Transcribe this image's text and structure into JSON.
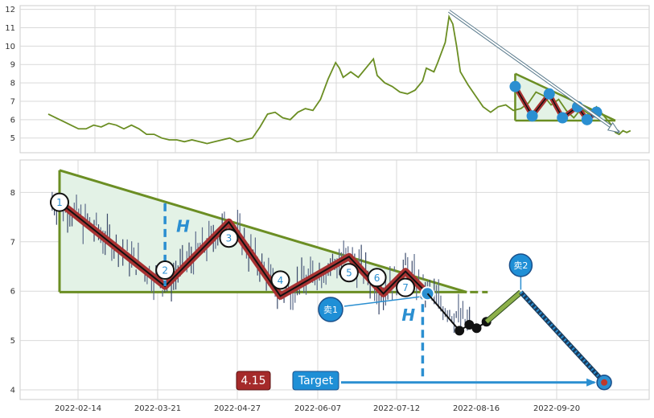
{
  "chart_data": [
    {
      "type": "line",
      "name_role": "overview-price",
      "ylim": [
        4.2,
        12.2
      ],
      "yticks": [
        5,
        6,
        7,
        8,
        9,
        10,
        11,
        12
      ],
      "grid": true,
      "series": [
        {
          "values": [
            [
              0.0,
              6.3
            ],
            [
              4,
              6.1
            ],
            [
              8,
              5.9
            ],
            [
              12,
              5.7
            ],
            [
              16,
              5.5
            ],
            [
              20,
              5.5
            ],
            [
              24,
              5.7
            ],
            [
              28,
              5.6
            ],
            [
              32,
              5.8
            ],
            [
              36,
              5.7
            ],
            [
              40,
              5.5
            ],
            [
              44,
              5.7
            ],
            [
              48,
              5.5
            ],
            [
              52,
              5.2
            ],
            [
              56,
              5.2
            ],
            [
              60,
              5.0
            ],
            [
              64,
              4.9
            ],
            [
              68,
              4.9
            ],
            [
              72,
              4.8
            ],
            [
              76,
              4.9
            ],
            [
              80,
              4.8
            ],
            [
              84,
              4.7
            ],
            [
              88,
              4.8
            ],
            [
              92,
              4.9
            ],
            [
              96,
              5.0
            ],
            [
              100,
              4.8
            ],
            [
              104,
              4.9
            ],
            [
              108,
              5.0
            ],
            [
              112,
              5.6
            ],
            [
              116,
              6.3
            ],
            [
              120,
              6.4
            ],
            [
              124,
              6.1
            ],
            [
              128,
              6.0
            ],
            [
              132,
              6.4
            ],
            [
              136,
              6.6
            ],
            [
              140,
              6.5
            ],
            [
              144,
              7.1
            ],
            [
              148,
              8.2
            ],
            [
              152,
              9.1
            ],
            [
              154,
              8.8
            ],
            [
              156,
              8.3
            ],
            [
              160,
              8.6
            ],
            [
              164,
              8.3
            ],
            [
              168,
              8.8
            ],
            [
              172,
              9.3
            ],
            [
              174,
              8.4
            ],
            [
              178,
              8.0
            ],
            [
              182,
              7.8
            ],
            [
              186,
              7.5
            ],
            [
              190,
              7.4
            ],
            [
              194,
              7.6
            ],
            [
              198,
              8.1
            ],
            [
              200,
              8.8
            ],
            [
              204,
              8.6
            ],
            [
              206,
              9.1
            ],
            [
              210,
              10.2
            ],
            [
              212,
              11.6
            ],
            [
              214,
              11.2
            ],
            [
              216,
              10.0
            ],
            [
              218,
              8.6
            ],
            [
              222,
              7.9
            ],
            [
              226,
              7.3
            ],
            [
              230,
              6.7
            ],
            [
              234,
              6.4
            ],
            [
              238,
              6.7
            ],
            [
              242,
              6.8
            ],
            [
              246,
              6.5
            ],
            [
              250,
              6.6
            ],
            [
              254,
              6.9
            ],
            [
              258,
              7.5
            ],
            [
              262,
              7.3
            ],
            [
              266,
              6.8
            ],
            [
              270,
              7.1
            ],
            [
              274,
              6.5
            ],
            [
              278,
              6.1
            ],
            [
              282,
              6.6
            ],
            [
              286,
              6.3
            ],
            [
              290,
              6.7
            ],
            [
              294,
              6.2
            ],
            [
              298,
              5.7
            ],
            [
              300,
              5.3
            ],
            [
              302,
              5.2
            ],
            [
              304,
              5.4
            ],
            [
              306,
              5.3
            ],
            [
              308,
              5.4
            ]
          ]
        }
      ],
      "pattern_points": [
        [
          247,
          7.8
        ],
        [
          256,
          6.2
        ],
        [
          265,
          7.4
        ],
        [
          272,
          6.1
        ],
        [
          280,
          6.7
        ],
        [
          285,
          6.0
        ],
        [
          290,
          6.4
        ]
      ],
      "pattern_triangle": {
        "top": [
          [
            247,
            8.5
          ],
          [
            300,
            5.95
          ]
        ],
        "base": [
          [
            247,
            5.95
          ],
          [
            300,
            5.95
          ]
        ]
      },
      "trend_arrow": [
        [
          212,
          11.9
        ],
        [
          302,
          5.3
        ]
      ]
    },
    {
      "type": "line",
      "name_role": "pattern-detail",
      "x_tick_labels": [
        "2022-02-14",
        "2022-03-21",
        "2022-04-27",
        "2022-06-07",
        "2022-07-12",
        "2022-08-16",
        "2022-09-20"
      ],
      "ylim": [
        3.8,
        8.6
      ],
      "yticks": [
        4,
        5,
        6,
        7,
        8
      ],
      "grid": true,
      "pivots": [
        {
          "label": "1",
          "x": 0,
          "y": 7.8
        },
        {
          "label": "2",
          "x": 43,
          "y": 6.1
        },
        {
          "label": "3",
          "x": 69,
          "y": 7.4
        },
        {
          "label": "4",
          "x": 90,
          "y": 5.9
        },
        {
          "label": "5",
          "x": 118,
          "y": 6.7
        },
        {
          "label": "6",
          "x": 132,
          "y": 5.95
        },
        {
          "label": "7",
          "x": 141,
          "y": 6.4
        }
      ],
      "breakout": {
        "label": "卖1",
        "x": 150,
        "y": 5.95
      },
      "sell2": {
        "label": "卖2",
        "x": 188,
        "y": 5.98
      },
      "target": {
        "label": "Target",
        "value_label": "4.15",
        "x": 222,
        "y": 4.15
      },
      "height_label": "H"
    }
  ]
}
